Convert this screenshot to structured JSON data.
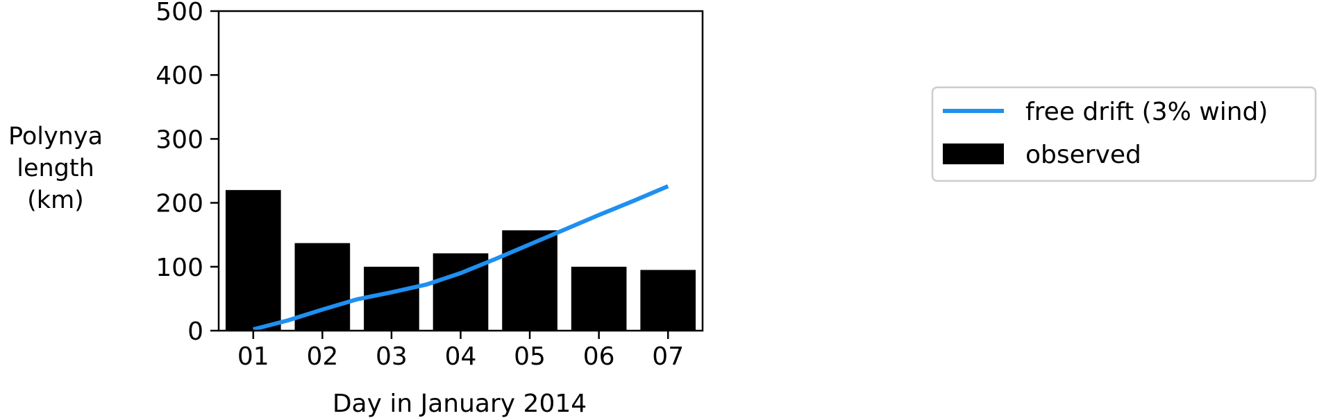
{
  "chart_data": {
    "type": "bar",
    "title": "",
    "xlabel": "Day in January 2014",
    "ylabel_lines": [
      "Polynya",
      "length",
      "(km)"
    ],
    "categories": [
      "01",
      "02",
      "03",
      "04",
      "05",
      "06",
      "07"
    ],
    "ylim": [
      0,
      500
    ],
    "yticks": [
      0,
      100,
      200,
      300,
      400,
      500
    ],
    "grid": false,
    "legend_position": "right",
    "series": [
      {
        "name": "observed",
        "kind": "bar",
        "color": "#000000",
        "values": [
          220,
          137,
          100,
          121,
          157,
          100,
          95
        ]
      },
      {
        "name": "free drift (3% wind)",
        "kind": "line",
        "color": "#1f8ff0",
        "x": [
          1,
          1.5,
          2,
          2.5,
          3,
          3.5,
          4,
          4.5,
          5,
          5.5,
          6,
          6.5,
          7
        ],
        "values": [
          2,
          16,
          33,
          49,
          60,
          72,
          90,
          112,
          135,
          158,
          181,
          203,
          226
        ]
      }
    ]
  }
}
